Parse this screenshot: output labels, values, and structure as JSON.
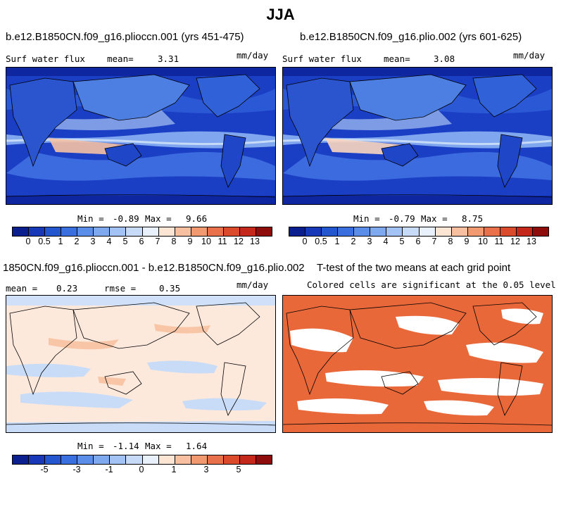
{
  "figure_title": "JJA",
  "panels": {
    "top_left": {
      "title": "b.e12.B1850CN.f09_g16.plioccn.001 (yrs 451-475)",
      "variable": "Surf water flux",
      "mean_label": "mean=",
      "mean": "3.31",
      "units": "mm/day",
      "min_label": "Min =",
      "min": "-0.89",
      "max_label": "Max =",
      "max": "9.66"
    },
    "top_right": {
      "title": "b.e12.B1850CN.f09_g16.plio.002 (yrs 601-625)",
      "variable": "Surf water flux",
      "mean_label": "mean=",
      "mean": "3.08",
      "units": "mm/day",
      "min_label": "Min =",
      "min": "-0.79",
      "max_label": "Max =",
      "max": "8.75"
    },
    "bottom_left": {
      "title": "1850CN.f09_g16.plioccn.001 - b.e12.B1850CN.f09_g16.plio.002",
      "mean_label": "mean =",
      "mean": "0.23",
      "rmse_label": "rmse =",
      "rmse": "0.35",
      "units": "mm/day",
      "min_label": "Min =",
      "min": "-1.14",
      "max_label": "Max =",
      "max": "1.64"
    },
    "bottom_right": {
      "title": "T-test of the two means at each grid point",
      "subtitle": "Colored cells are significant at the 0.05 level"
    }
  },
  "chart_data": [
    {
      "type": "heatmap",
      "title": "b.e12.B1850CN.f09_g16.plioccn.001 (yrs 451-475)",
      "variable": "Surf water flux (mm/day)",
      "season": "JJA",
      "mean": 3.31,
      "min": -0.89,
      "max": 9.66,
      "colorbar_levels": [
        0,
        0.5,
        1,
        2,
        3,
        4,
        5,
        6,
        7,
        8,
        9,
        10,
        11,
        12,
        13
      ]
    },
    {
      "type": "heatmap",
      "title": "b.e12.B1850CN.f09_g16.plio.002 (yrs 601-625)",
      "variable": "Surf water flux (mm/day)",
      "season": "JJA",
      "mean": 3.08,
      "min": -0.79,
      "max": 8.75,
      "colorbar_levels": [
        0,
        0.5,
        1,
        2,
        3,
        4,
        5,
        6,
        7,
        8,
        9,
        10,
        11,
        12,
        13
      ]
    },
    {
      "type": "heatmap",
      "title": "difference plioccn.001 - plio.002",
      "mean": 0.23,
      "rmse": 0.35,
      "min": -1.14,
      "max": 1.64,
      "colorbar_tick_labels": [
        -5,
        -3,
        -1,
        0,
        1,
        3,
        5
      ]
    },
    {
      "type": "heatmap",
      "title": "T-test of the two means at each grid point",
      "note": "Colored cells are significant at the 0.05 level"
    }
  ],
  "colorbars": {
    "full": {
      "colors": [
        "#0b1f8f",
        "#1738b8",
        "#2456d0",
        "#3a6fdf",
        "#5a8ee8",
        "#7ea9ef",
        "#a3c3f4",
        "#c7dbf8",
        "#e7f0fb",
        "#fde5d3",
        "#f8bfa0",
        "#f19a72",
        "#e8704b",
        "#db4a2b",
        "#c4281a",
        "#8f0c0c"
      ],
      "labels": [
        "0",
        "0.5",
        "1",
        "2",
        "3",
        "4",
        "5",
        "6",
        "7",
        "8",
        "9",
        "10",
        "11",
        "12",
        "13"
      ]
    },
    "diff": {
      "colors": [
        "#0b1f8f",
        "#1738b8",
        "#2456d0",
        "#3a6fdf",
        "#5a8ee8",
        "#7ea9ef",
        "#a3c3f4",
        "#c7dbf8",
        "#e7f0fb",
        "#fde5d3",
        "#f8bfa0",
        "#f19a72",
        "#e8704b",
        "#db4a2b",
        "#c4281a",
        "#8f0c0c"
      ],
      "labels": [
        "-5",
        "-3",
        "-1",
        "0",
        "1",
        "3",
        "5"
      ]
    }
  },
  "colors": {
    "ocean_deep": "#1a3ec4",
    "ocean_mid": "#3c6be0",
    "ocean_light": "#8fb5f0",
    "diff_background": "#fde9dc",
    "diff_blue": "#c9dcf7",
    "significant": "#e8683a"
  }
}
